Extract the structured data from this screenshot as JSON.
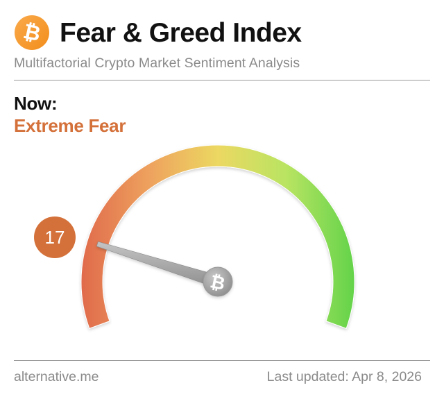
{
  "header": {
    "logo_icon": "bitcoin-icon",
    "title": "Fear & Greed Index",
    "subtitle": "Multifactorial Crypto Market Sentiment Analysis"
  },
  "current": {
    "label": "Now:",
    "classification": "Extreme Fear",
    "value": "17",
    "color": "#d4713a"
  },
  "footer": {
    "source": "alternative.me",
    "last_updated": "Last updated: Apr 8, 2026"
  },
  "colors": {
    "logo_orange": "#f7931a",
    "badge": "#d4713a",
    "gauge_start": "#e06a4c",
    "gauge_mid": "#ecd862",
    "gauge_end": "#63d34a",
    "needle": "#a8a8a8"
  },
  "chart_data": {
    "type": "gauge",
    "title": "Fear & Greed Index",
    "value": 17,
    "min": 0,
    "max": 100,
    "classification": "Extreme Fear",
    "gradient": [
      "#e06a4c",
      "#eea25e",
      "#ecd862",
      "#b9e462",
      "#63d34a"
    ],
    "arc_degrees": 220
  }
}
